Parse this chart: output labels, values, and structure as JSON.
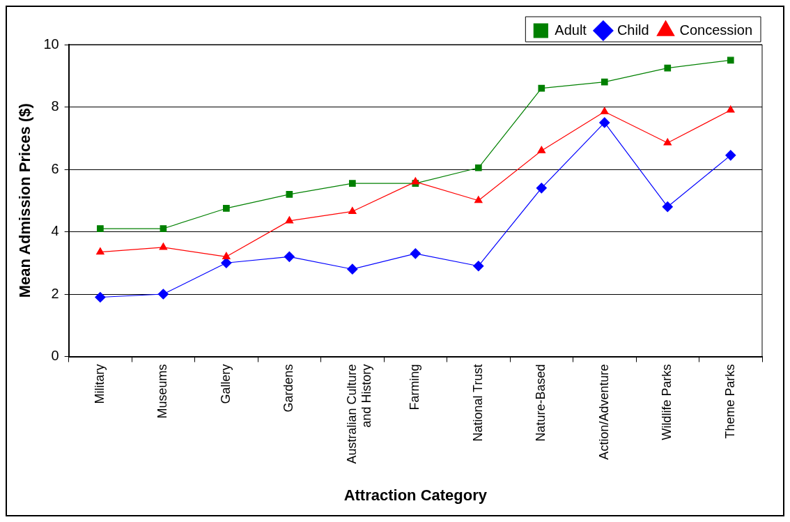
{
  "chart_data": {
    "type": "line",
    "xlabel": "Attraction Category",
    "ylabel": "Mean Admission Prices ($)",
    "categories": [
      "Military",
      "Museums",
      "Gallery",
      "Gardens",
      "Australian Culture and History",
      "Farming",
      "National Trust",
      "Nature-Based",
      "Action/Adventure",
      "Wildlife Parks",
      "Theme Parks"
    ],
    "series": [
      {
        "name": "Adult",
        "color": "#008000",
        "marker": "square",
        "values": [
          4.1,
          4.1,
          4.75,
          5.2,
          5.55,
          5.55,
          6.05,
          8.6,
          8.8,
          9.25,
          9.5
        ]
      },
      {
        "name": "Child",
        "color": "#0000ff",
        "marker": "diamond",
        "values": [
          1.9,
          2.0,
          3.0,
          3.2,
          2.8,
          3.3,
          2.9,
          5.4,
          7.5,
          4.8,
          6.45
        ]
      },
      {
        "name": "Concession",
        "color": "#ff0000",
        "marker": "triangle",
        "values": [
          3.35,
          3.5,
          3.2,
          4.35,
          4.65,
          5.6,
          5.0,
          6.6,
          7.85,
          6.85,
          7.9
        ]
      }
    ],
    "ylim": [
      0,
      10
    ],
    "yticks": [
      0,
      2,
      4,
      6,
      8,
      10
    ],
    "grid": "y",
    "legend": "top right",
    "line_style": "solid"
  }
}
